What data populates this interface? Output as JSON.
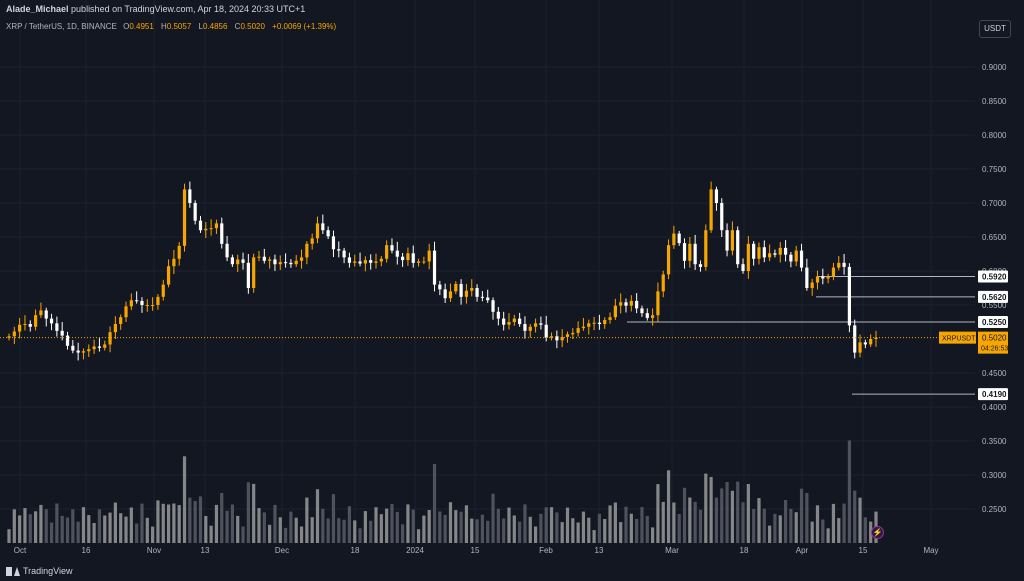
{
  "header": {
    "author": "Alade_Michael",
    "published_text": "published on TradingView.com, Apr 18, 2024 20:33 UTC+1"
  },
  "legend": {
    "symbol_text": "XRP / TetherUS, 1D, BINANCE",
    "open_label": "O",
    "open": "0.4951",
    "high_label": "H",
    "high": "0.5057",
    "low_label": "L",
    "low": "0.4856",
    "close_label": "C",
    "close": "0.5020",
    "change": "+0.0069 (+1.39%)"
  },
  "currency_button": "USDT",
  "footer": {
    "brand": "TradingView"
  },
  "colors": {
    "background": "#131722",
    "up_candle": "#f7a600",
    "down_candle": "#ffffff",
    "grid": "#1e222d",
    "axis_text": "#b2b5be",
    "price_label_bg": "#f7a600"
  },
  "chart_data": {
    "type": "candlestick",
    "y_axis_ticks": [
      "0.9000",
      "0.8500",
      "0.8000",
      "0.7500",
      "0.7000",
      "0.6500",
      "0.6000",
      "0.5500",
      "0.4500",
      "0.4000",
      "0.3500",
      "0.3000",
      "0.2500"
    ],
    "x_axis_ticks": [
      "Oct",
      "16",
      "Nov",
      "13",
      "Dec",
      "18",
      "2024",
      "15",
      "Feb",
      "13",
      "Mar",
      "18",
      "Apr",
      "15",
      "May"
    ],
    "ylim": [
      0.2,
      0.93
    ],
    "levels": [
      {
        "label": "0.5920",
        "value": 0.592
      },
      {
        "label": "0.5620",
        "value": 0.562
      },
      {
        "label": "0.5250",
        "value": 0.525
      },
      {
        "label": "0.4190",
        "value": 0.419
      }
    ],
    "current_price": {
      "symbol": "XRPUSDT",
      "value": "0.5020",
      "countdown": "04:26:53"
    },
    "close_series": [
      0.504,
      0.511,
      0.521,
      0.522,
      0.518,
      0.535,
      0.542,
      0.53,
      0.523,
      0.512,
      0.505,
      0.49,
      0.483,
      0.48,
      0.482,
      0.485,
      0.489,
      0.487,
      0.492,
      0.51,
      0.522,
      0.532,
      0.548,
      0.557,
      0.556,
      0.55,
      0.55,
      0.55,
      0.562,
      0.58,
      0.607,
      0.618,
      0.637,
      0.72,
      0.7,
      0.674,
      0.66,
      0.662,
      0.663,
      0.67,
      0.64,
      0.62,
      0.61,
      0.617,
      0.612,
      0.575,
      0.62,
      0.621,
      0.615,
      0.617,
      0.61,
      0.613,
      0.612,
      0.61,
      0.615,
      0.62,
      0.64,
      0.648,
      0.67,
      0.66,
      0.651,
      0.632,
      0.63,
      0.62,
      0.612,
      0.614,
      0.611,
      0.616,
      0.612,
      0.614,
      0.618,
      0.638,
      0.63,
      0.621,
      0.616,
      0.626,
      0.612,
      0.614,
      0.614,
      0.63,
      0.58,
      0.573,
      0.56,
      0.57,
      0.581,
      0.562,
      0.571,
      0.575,
      0.562,
      0.561,
      0.557,
      0.54,
      0.53,
      0.521,
      0.525,
      0.53,
      0.522,
      0.512,
      0.518,
      0.523,
      0.521,
      0.502,
      0.504,
      0.498,
      0.503,
      0.507,
      0.509,
      0.516,
      0.518,
      0.523,
      0.524,
      0.522,
      0.528,
      0.532,
      0.549,
      0.554,
      0.549,
      0.556,
      0.545,
      0.538,
      0.531,
      0.535,
      0.57,
      0.595,
      0.638,
      0.655,
      0.641,
      0.615,
      0.64,
      0.61,
      0.606,
      0.66,
      0.72,
      0.7,
      0.66,
      0.63,
      0.66,
      0.61,
      0.6,
      0.64,
      0.618,
      0.635,
      0.62,
      0.626,
      0.624,
      0.634,
      0.624,
      0.614,
      0.63,
      0.605,
      0.575,
      0.583,
      0.592,
      0.589,
      0.592,
      0.605,
      0.612,
      0.606,
      0.52,
      0.48,
      0.495,
      0.492,
      0.5,
      0.502
    ],
    "volume_note": "relative volume bars shown beneath price"
  }
}
